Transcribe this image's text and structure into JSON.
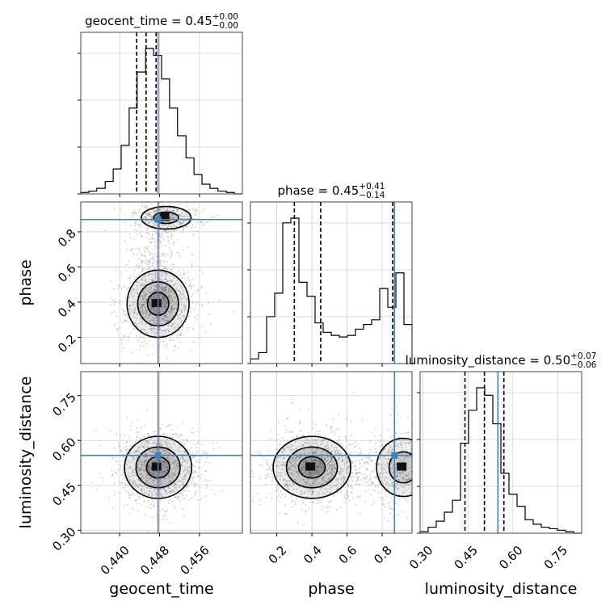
{
  "chart_data": {
    "type": "corner",
    "grid": true,
    "truth_color": "#4682b4",
    "parameters": [
      "geocent_time",
      "phase",
      "luminosity_distance"
    ],
    "axis_labels": {
      "geocent_time": "geocent_time",
      "phase": "phase",
      "luminosity_distance": "luminosity_distance"
    },
    "truths": {
      "geocent_time": 0.4477,
      "phase": 0.87,
      "luminosity_distance": 0.55
    },
    "ranges": {
      "geocent_time": [
        0.4322,
        0.4646
      ],
      "phase": [
        0.05,
        0.97
      ],
      "luminosity_distance": [
        0.29,
        0.83
      ]
    },
    "ticks": {
      "geocent_time": {
        "values": [
          0.44,
          0.448,
          0.456
        ],
        "labels": [
          "0.440",
          "0.448",
          "0.456"
        ]
      },
      "phase": {
        "values": [
          0.2,
          0.4,
          0.6,
          0.8
        ],
        "labels": [
          "0.2",
          "0.4",
          "0.6",
          "0.8"
        ]
      },
      "luminosity_distance": {
        "values": [
          0.3,
          0.45,
          0.6,
          0.75
        ],
        "labels": [
          "0.30",
          "0.45",
          "0.60",
          "0.75"
        ]
      }
    },
    "titles": [
      {
        "param": "geocent_time",
        "text": "geocent_time = 0.45",
        "sup": "+0.00",
        "sub": "−0.00"
      },
      {
        "param": "phase",
        "text": "phase = 0.45",
        "sup": "+0.41",
        "sub": "−0.14"
      },
      {
        "param": "luminosity_distance",
        "text": "luminosity_distance = 0.50",
        "sup": "+0.07",
        "sub": "−0.06"
      }
    ],
    "quantiles": {
      "geocent_time": [
        0.4434,
        0.4453,
        0.4473
      ],
      "phase": [
        0.3,
        0.45,
        0.86
      ],
      "luminosity_distance": [
        0.44,
        0.505,
        0.57
      ]
    },
    "histograms": {
      "geocent_time": {
        "bin_edges": [
          0.4322,
          0.4338,
          0.4354,
          0.4371,
          0.4387,
          0.4403,
          0.4419,
          0.4435,
          0.4452,
          0.4468,
          0.4484,
          0.45,
          0.4516,
          0.4533,
          0.4549,
          0.4565,
          0.4581,
          0.4597,
          0.4614,
          0.463,
          0.4646
        ],
        "counts": [
          1,
          2,
          4,
          9,
          18,
          35,
          62,
          88,
          105,
          100,
          83,
          62,
          42,
          26,
          14,
          7,
          4,
          2,
          1,
          0
        ]
      },
      "phase": {
        "bin_edges": [
          0.05,
          0.096,
          0.142,
          0.188,
          0.234,
          0.28,
          0.326,
          0.372,
          0.418,
          0.464,
          0.51,
          0.556,
          0.602,
          0.648,
          0.694,
          0.74,
          0.786,
          0.832,
          0.878,
          0.924,
          0.97
        ],
        "counts": [
          3,
          7,
          30,
          45,
          90,
          93,
          52,
          43,
          26,
          20,
          18,
          17,
          18,
          22,
          25,
          28,
          48,
          36,
          58,
          25
        ]
      },
      "luminosity_distance": {
        "bin_edges": [
          0.29,
          0.317,
          0.344,
          0.371,
          0.398,
          0.425,
          0.452,
          0.479,
          0.506,
          0.533,
          0.56,
          0.587,
          0.614,
          0.641,
          0.668,
          0.695,
          0.722,
          0.749,
          0.776,
          0.803,
          0.83
        ],
        "counts": [
          1,
          4,
          8,
          14,
          22,
          60,
          82,
          97,
          92,
          73,
          40,
          26,
          18,
          9,
          6,
          4,
          3,
          2,
          1,
          0
        ]
      }
    },
    "joint": {
      "phase_vs_geocent_time": {
        "x_center": 0.4477,
        "y_center": 0.39,
        "secondary_y_center": 0.88
      },
      "luminosity_distance_vs_geocent_time": {
        "x_center": 0.4477,
        "y_center": 0.51
      },
      "luminosity_distance_vs_phase": {
        "x_center": 0.4,
        "y_center": 0.51,
        "secondary_x_center": 0.92
      }
    }
  }
}
